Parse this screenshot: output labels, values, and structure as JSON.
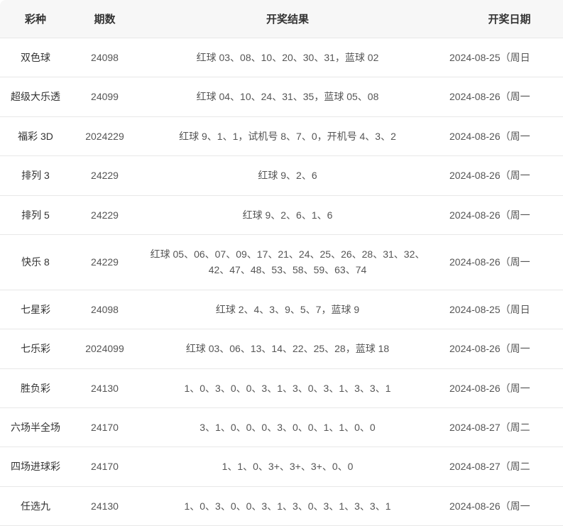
{
  "table": {
    "headers": {
      "type": "彩种",
      "period": "期数",
      "result": "开奖结果",
      "date": "开奖日期"
    },
    "rows": [
      {
        "type": "双色球",
        "period": "24098",
        "result": "红球 03、08、10、20、30、31，蓝球 02",
        "date": "2024-08-25（周日"
      },
      {
        "type": "超级大乐透",
        "period": "24099",
        "result": "红球 04、10、24、31、35，蓝球 05、08",
        "date": "2024-08-26（周一"
      },
      {
        "type": "福彩 3D",
        "period": "2024229",
        "result": "红球 9、1、1，试机号 8、7、0，开机号 4、3、2",
        "date": "2024-08-26（周一"
      },
      {
        "type": "排列 3",
        "period": "24229",
        "result": "红球 9、2、6",
        "date": "2024-08-26（周一"
      },
      {
        "type": "排列 5",
        "period": "24229",
        "result": "红球 9、2、6、1、6",
        "date": "2024-08-26（周一"
      },
      {
        "type": "快乐 8",
        "period": "24229",
        "result": "红球 05、06、07、09、17、21、24、25、26、28、31、32、42、47、48、53、58、59、63、74",
        "date": "2024-08-26（周一"
      },
      {
        "type": "七星彩",
        "period": "24098",
        "result": "红球 2、4、3、9、5、7，蓝球 9",
        "date": "2024-08-25（周日"
      },
      {
        "type": "七乐彩",
        "period": "2024099",
        "result": "红球 03、06、13、14、22、25、28，蓝球 18",
        "date": "2024-08-26（周一"
      },
      {
        "type": "胜负彩",
        "period": "24130",
        "result": "1、0、3、0、0、3、1、3、0、3、1、3、3、1",
        "date": "2024-08-26（周一"
      },
      {
        "type": "六场半全场",
        "period": "24170",
        "result": "3、1、0、0、0、3、0、0、1、1、0、0",
        "date": "2024-08-27（周二"
      },
      {
        "type": "四场进球彩",
        "period": "24170",
        "result": "1、1、0、3+、3+、3+、0、0",
        "date": "2024-08-27（周二"
      },
      {
        "type": "任选九",
        "period": "24130",
        "result": "1、0、3、0、0、3、1、3、0、3、1、3、3、1",
        "date": "2024-08-26（周一"
      }
    ]
  }
}
